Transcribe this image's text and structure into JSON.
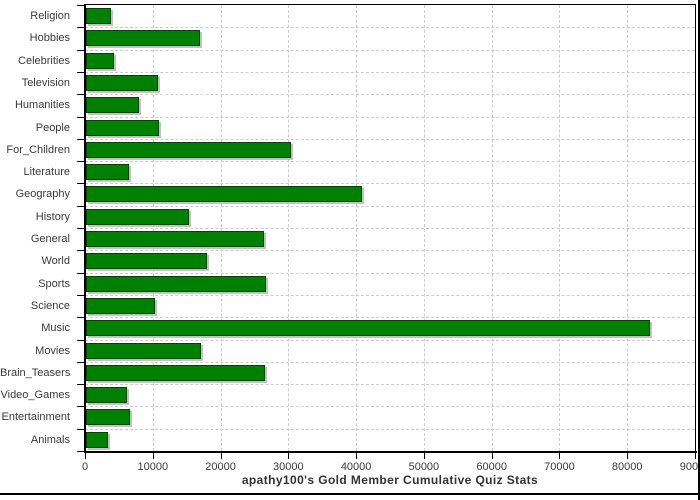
{
  "title": "apathy100's Gold Member Cumulative Quiz Stats",
  "colors": {
    "bar_fill": "#008000",
    "bar_border": "#054405",
    "bar_shadow": "#c2c2c2",
    "gridline": "#cccccc",
    "axis": "#000000",
    "label_text": "#3a3a3a",
    "title_text": "#333333",
    "background": "#ffffff"
  },
  "chart_data": {
    "type": "bar",
    "orientation": "horizontal",
    "title": "apathy100's Gold Member Cumulative Quiz Stats",
    "xlabel": "",
    "ylabel": "",
    "xlim": [
      0,
      90000
    ],
    "x_ticks": [
      0,
      10000,
      20000,
      30000,
      40000,
      50000,
      60000,
      70000,
      80000,
      90000
    ],
    "grid": "dashed, vertical and horizontal",
    "legend": "none",
    "categories": [
      "Religion",
      "Hobbies",
      "Celebrities",
      "Television",
      "Humanities",
      "People",
      "For_Children",
      "Literature",
      "Geography",
      "History",
      "General",
      "World",
      "Sports",
      "Science",
      "Music",
      "Movies",
      "Brain_Teasers",
      "Video_Games",
      "Entertainment",
      "Animals"
    ],
    "values": [
      3700,
      16800,
      4200,
      10600,
      7800,
      10700,
      30300,
      6400,
      40700,
      15200,
      26300,
      17800,
      26600,
      10200,
      83200,
      17000,
      26400,
      6100,
      6500,
      3300
    ]
  }
}
